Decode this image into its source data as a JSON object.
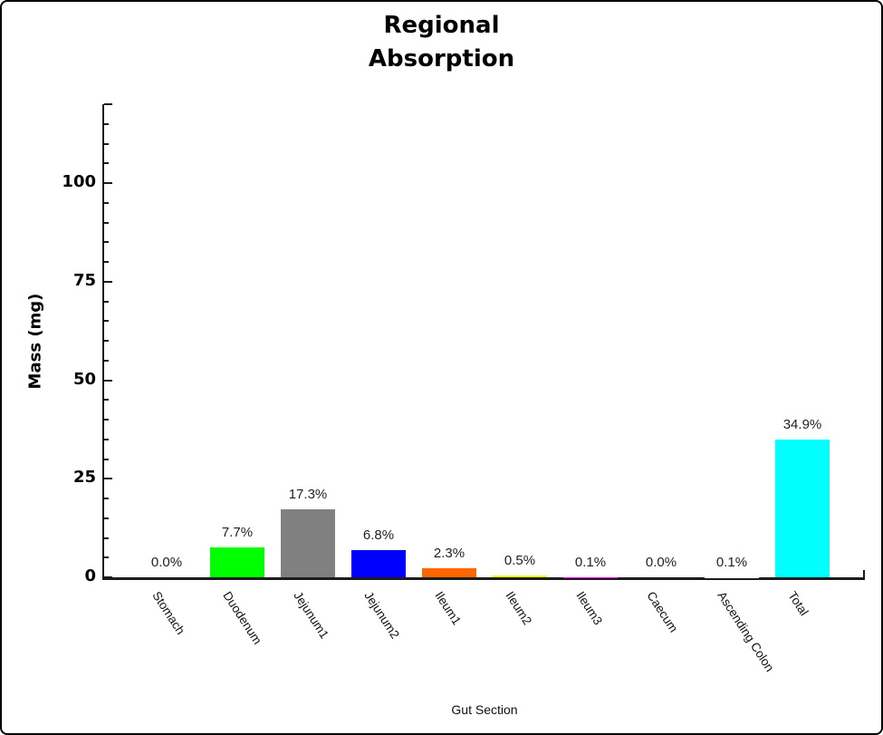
{
  "chart_data": {
    "type": "bar",
    "title": "Regional\nAbsorption",
    "xlabel": "Gut Section",
    "ylabel": "Mass (mg)",
    "categories": [
      "Stomach",
      "Duodenum",
      "Jejunum1",
      "Jejunum2",
      "Ileum1",
      "Ileum2",
      "Ileum3",
      "Caecum",
      "Ascending Colon",
      "Total"
    ],
    "values": [
      0.0,
      7.7,
      17.3,
      6.8,
      2.3,
      0.5,
      0.1,
      0.0,
      0.1,
      34.9
    ],
    "bar_labels": [
      "0.0%",
      "7.7%",
      "17.3%",
      "6.8%",
      "2.3%",
      "0.5%",
      "0.1%",
      "0.0%",
      "0.1%",
      "34.9%"
    ],
    "bar_colors": [
      "#000000",
      "#00ff00",
      "#808080",
      "#0000ff",
      "#ff6600",
      "#ffff00",
      "#ff00ff",
      "#ffffff",
      "#ffffff",
      "#00ffff"
    ],
    "ylim": [
      0,
      120
    ],
    "yticks": [
      0,
      25,
      50,
      75,
      100
    ],
    "minor_tick_step": 5,
    "grid": false,
    "legend": null,
    "axis_color": "#1c1c1c"
  }
}
